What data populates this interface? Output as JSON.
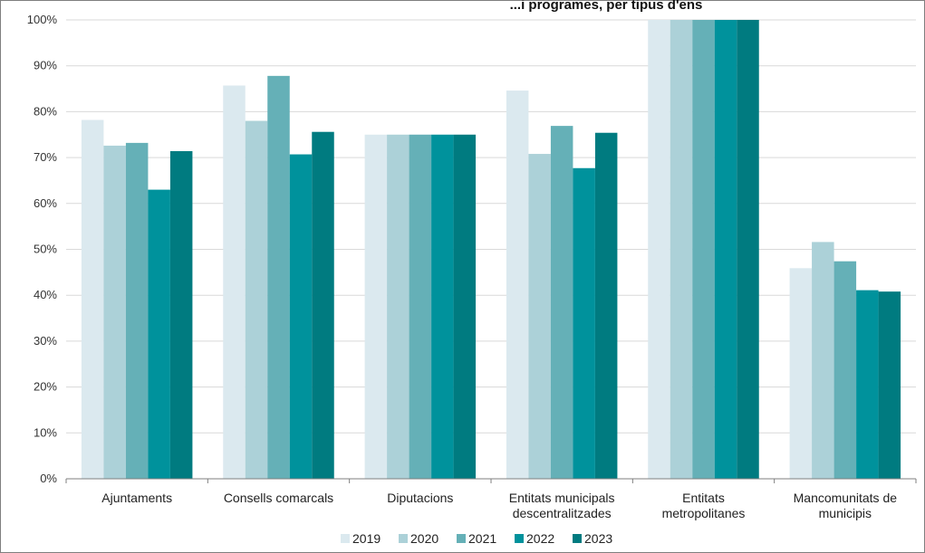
{
  "chart_data": {
    "type": "bar",
    "title": "...i programes, per tipus d'ens",
    "categories": [
      "Ajuntaments",
      "Consells comarcals",
      "Diputacions",
      "Entitats municipals descentralitzades",
      "Entitats metropolitanes",
      "Mancomunitats de municipis"
    ],
    "category_lines": [
      [
        "Ajuntaments"
      ],
      [
        "Consells comarcals"
      ],
      [
        "Diputacions"
      ],
      [
        "Entitats municipals",
        "descentralitzades"
      ],
      [
        "Entitats",
        "metropolitanes"
      ],
      [
        "Mancomunitats de",
        "municipis"
      ]
    ],
    "series": [
      {
        "name": "2019",
        "color": "#dbe9ef",
        "values": [
          78.2,
          85.7,
          75.0,
          84.6,
          100.0,
          45.9
        ]
      },
      {
        "name": "2020",
        "color": "#acd1d8",
        "values": [
          72.6,
          78.0,
          75.0,
          70.8,
          100.0,
          51.6
        ]
      },
      {
        "name": "2021",
        "color": "#65b0b7",
        "values": [
          73.2,
          87.8,
          75.0,
          76.9,
          100.0,
          47.4
        ]
      },
      {
        "name": "2022",
        "color": "#00929c",
        "values": [
          63.0,
          70.7,
          75.0,
          67.7,
          100.0,
          41.1
        ]
      },
      {
        "name": "2023",
        "color": "#007b80",
        "values": [
          71.4,
          75.6,
          75.0,
          75.4,
          100.0,
          40.8
        ]
      }
    ],
    "yticks": [
      "0%",
      "10%",
      "20%",
      "30%",
      "40%",
      "50%",
      "60%",
      "70%",
      "80%",
      "90%",
      "100%"
    ],
    "ylim": [
      0,
      100
    ],
    "xlabel": "",
    "ylabel": "",
    "grid": "horizontal",
    "legend_position": "bottom-center"
  }
}
